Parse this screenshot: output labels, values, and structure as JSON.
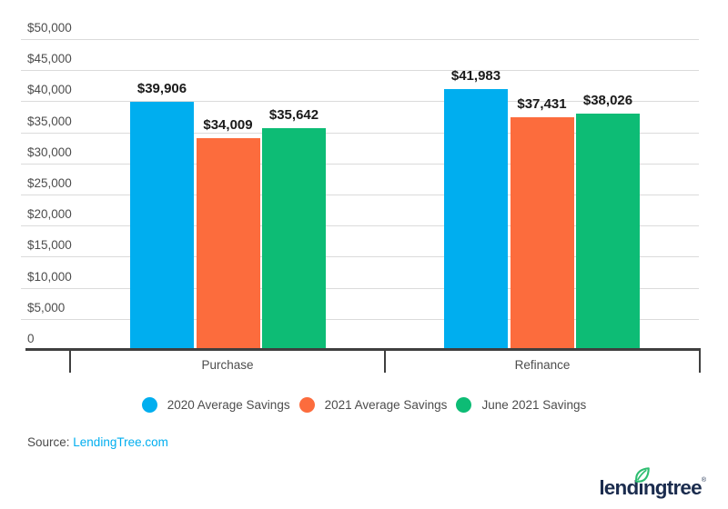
{
  "chart_data": {
    "type": "bar",
    "title": "",
    "categories": [
      "Purchase",
      "Refinance"
    ],
    "series": [
      {
        "name": "2020 Average Savings",
        "color": "#00AEEF",
        "values": [
          39906,
          41983
        ],
        "labels": [
          "$39,906",
          "$41,983"
        ]
      },
      {
        "name": "2021 Average Savings",
        "color": "#FC6C3D",
        "values": [
          34009,
          37431
        ],
        "labels": [
          "$34,009",
          "$37,431"
        ]
      },
      {
        "name": "June 2021 Savings",
        "color": "#0DBC75",
        "values": [
          35642,
          38026
        ],
        "labels": [
          "$35,642",
          "$38,026"
        ]
      }
    ],
    "ylim": [
      0,
      50000
    ],
    "ytick_step": 5000,
    "ytick_labels": [
      "$50,000",
      "$45,000",
      "$40,000",
      "$35,000",
      "$30,000",
      "$25,000",
      "$20,000",
      "$15,000",
      "$10,000",
      "$5,000",
      "0"
    ],
    "grid": true,
    "legend_position": "bottom"
  },
  "source": {
    "prefix": "Source: ",
    "link_text": "LendingTree.com"
  },
  "logo": {
    "text": "lendingtree",
    "registered": "®",
    "brand_navy": "#1B2C4E",
    "leaf_green": "#2EBE71"
  }
}
